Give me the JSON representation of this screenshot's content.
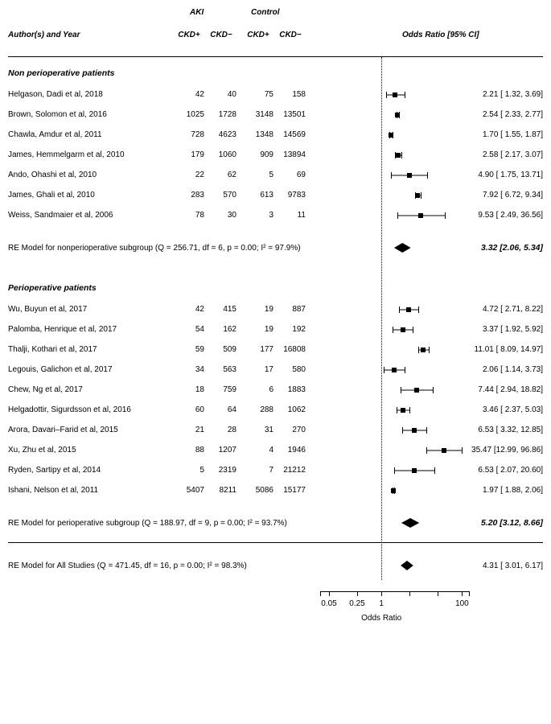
{
  "layout": {
    "colPositions": {
      "aki_ckdp": 206,
      "aki_ckdn": 246,
      "ctrl_ckdp": 292,
      "ctrl_ckdn": 332
    },
    "akiHeaderLeft": 226,
    "ctrlHeaderLeft": 302,
    "orHeaderLeft": 490,
    "plotLeft": 388,
    "plotWidth": 185,
    "refLineX": 60,
    "logMin": -3.5,
    "logMax": 5.0,
    "colors": {
      "line": "#000000",
      "bg": "#ffffff"
    }
  },
  "headers": {
    "aki": "AKI",
    "control": "Control",
    "author": "Author(s) and Year",
    "ckdp": "CKD+",
    "ckdn": "CKD−",
    "or": "Odds Ratio [95% CI]"
  },
  "sections": [
    {
      "title": "Non perioperative patients",
      "studies": [
        {
          "name": "Helgason, Dadi et al, 2018",
          "aki_ckdp": 42,
          "aki_ckdn": 40,
          "ctrl_ckdp": 75,
          "ctrl_ckdn": 158,
          "or": 2.21,
          "lo": 1.32,
          "hi": 3.69,
          "orText": "2.21 [ 1.32,  3.69]"
        },
        {
          "name": "Brown, Solomon et al, 2016",
          "aki_ckdp": 1025,
          "aki_ckdn": 1728,
          "ctrl_ckdp": 3148,
          "ctrl_ckdn": 13501,
          "or": 2.54,
          "lo": 2.33,
          "hi": 2.77,
          "orText": "2.54 [ 2.33,  2.77]"
        },
        {
          "name": "Chawla, Amdur et al, 2011",
          "aki_ckdp": 728,
          "aki_ckdn": 4623,
          "ctrl_ckdp": 1348,
          "ctrl_ckdn": 14569,
          "or": 1.7,
          "lo": 1.55,
          "hi": 1.87,
          "orText": "1.70 [ 1.55,  1.87]"
        },
        {
          "name": "James, Hemmelgarm et al, 2010",
          "aki_ckdp": 179,
          "aki_ckdn": 1060,
          "ctrl_ckdp": 909,
          "ctrl_ckdn": 13894,
          "or": 2.58,
          "lo": 2.17,
          "hi": 3.07,
          "orText": "2.58 [ 2.17,  3.07]"
        },
        {
          "name": "Ando, Ohashi et al, 2010",
          "aki_ckdp": 22,
          "aki_ckdn": 62,
          "ctrl_ckdp": 5,
          "ctrl_ckdn": 69,
          "or": 4.9,
          "lo": 1.75,
          "hi": 13.71,
          "orText": "4.90 [ 1.75, 13.71]"
        },
        {
          "name": "James, Ghali et al, 2010",
          "aki_ckdp": 283,
          "aki_ckdn": 570,
          "ctrl_ckdp": 613,
          "ctrl_ckdn": 9783,
          "or": 7.92,
          "lo": 6.72,
          "hi": 9.34,
          "orText": "7.92 [ 6.72,  9.34]"
        },
        {
          "name": "Weiss, Sandmaier et al, 2006",
          "aki_ckdp": 78,
          "aki_ckdn": 30,
          "ctrl_ckdp": 3,
          "ctrl_ckdn": 11,
          "or": 9.53,
          "lo": 2.49,
          "hi": 36.56,
          "orText": "9.53 [ 2.49, 36.56]"
        }
      ],
      "re": {
        "text": "RE Model for nonperioperative subgroup (Q = 256.71, df = 6, p = 0.00; I² = 97.9%)",
        "or": 3.32,
        "lo": 2.06,
        "hi": 5.34,
        "orText": "3.32 [2.06, 5.34]"
      }
    },
    {
      "title": "Perioperative patients",
      "studies": [
        {
          "name": "Wu, Buyun et al, 2017",
          "aki_ckdp": 42,
          "aki_ckdn": 415,
          "ctrl_ckdp": 19,
          "ctrl_ckdn": 887,
          "or": 4.72,
          "lo": 2.71,
          "hi": 8.22,
          "orText": "4.72 [ 2.71,  8.22]"
        },
        {
          "name": "Palomba, Henrique et al, 2017",
          "aki_ckdp": 54,
          "aki_ckdn": 162,
          "ctrl_ckdp": 19,
          "ctrl_ckdn": 192,
          "or": 3.37,
          "lo": 1.92,
          "hi": 5.92,
          "orText": "3.37 [ 1.92,  5.92]"
        },
        {
          "name": "Thalji, Kothari et al, 2017",
          "aki_ckdp": 59,
          "aki_ckdn": 509,
          "ctrl_ckdp": 177,
          "ctrl_ckdn": 16808,
          "or": 11.01,
          "lo": 8.09,
          "hi": 14.97,
          "orText": "11.01 [ 8.09, 14.97]"
        },
        {
          "name": "Legouis, Galichon et al, 2017",
          "aki_ckdp": 34,
          "aki_ckdn": 563,
          "ctrl_ckdp": 17,
          "ctrl_ckdn": 580,
          "or": 2.06,
          "lo": 1.14,
          "hi": 3.73,
          "orText": "2.06 [ 1.14,  3.73]"
        },
        {
          "name": "Chew, Ng et al, 2017",
          "aki_ckdp": 18,
          "aki_ckdn": 759,
          "ctrl_ckdp": 6,
          "ctrl_ckdn": 1883,
          "or": 7.44,
          "lo": 2.94,
          "hi": 18.82,
          "orText": "7.44 [ 2.94, 18.82]"
        },
        {
          "name": "Helgadottir, Sigurdsson et al, 2016",
          "aki_ckdp": 60,
          "aki_ckdn": 64,
          "ctrl_ckdp": 288,
          "ctrl_ckdn": 1062,
          "or": 3.46,
          "lo": 2.37,
          "hi": 5.03,
          "orText": "3.46 [ 2.37,  5.03]"
        },
        {
          "name": "Arora, Davari–Farid et al, 2015",
          "aki_ckdp": 21,
          "aki_ckdn": 28,
          "ctrl_ckdp": 31,
          "ctrl_ckdn": 270,
          "or": 6.53,
          "lo": 3.32,
          "hi": 12.85,
          "orText": "6.53 [ 3.32, 12.85]"
        },
        {
          "name": "Xu, Zhu et al, 2015",
          "aki_ckdp": 88,
          "aki_ckdn": 1207,
          "ctrl_ckdp": 4,
          "ctrl_ckdn": 1946,
          "or": 35.47,
          "lo": 12.99,
          "hi": 96.86,
          "orText": "35.47 [12.99, 96.86]"
        },
        {
          "name": "Ryden, Sartipy et al, 2014",
          "aki_ckdp": 5,
          "aki_ckdn": 2319,
          "ctrl_ckdp": 7,
          "ctrl_ckdn": 21212,
          "or": 6.53,
          "lo": 2.07,
          "hi": 20.6,
          "orText": "6.53 [ 2.07, 20.60]"
        },
        {
          "name": "Ishani, Nelson et al, 2011",
          "aki_ckdp": 5407,
          "aki_ckdn": 8211,
          "ctrl_ckdp": 5086,
          "ctrl_ckdn": 15177,
          "or": 1.97,
          "lo": 1.88,
          "hi": 2.06,
          "orText": "1.97 [ 1.88,  2.06]"
        }
      ],
      "re": {
        "text": "RE Model for perioperative subgroup (Q = 188.97, df = 9, p = 0.00; I² = 93.7%)",
        "or": 5.2,
        "lo": 3.12,
        "hi": 8.66,
        "orText": "5.20 [3.12, 8.66]"
      }
    }
  ],
  "overall": {
    "text": "RE Model for All Studies (Q = 471.45, df = 16, p = 0.00; I² = 98.3%)",
    "or": 4.31,
    "lo": 3.01,
    "hi": 6.17,
    "orText": "4.31 [ 3.01,  6.17]"
  },
  "axis": {
    "ticks": [
      0.05,
      0.25,
      1,
      5,
      25,
      100
    ],
    "tickLabels": [
      "0.05",
      "0.25",
      "1",
      "",
      "",
      "100"
    ],
    "title": "Odds Ratio"
  }
}
